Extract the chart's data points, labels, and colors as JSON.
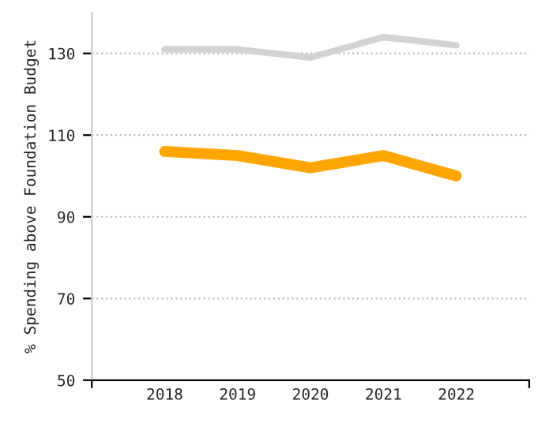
{
  "chart_data": {
    "type": "line",
    "ylabel": "% Spending above Foundation Budget",
    "categories": [
      "2018",
      "2019",
      "2020",
      "2021",
      "2022"
    ],
    "series": [
      {
        "color": "#d3d3d3",
        "values": [
          131,
          131,
          129,
          134,
          132
        ]
      },
      {
        "color": "#ffa500",
        "values": [
          106,
          105,
          102,
          105,
          100
        ]
      }
    ],
    "ylim": [
      50,
      140
    ],
    "yticks": [
      50,
      70,
      90,
      110,
      130
    ],
    "grid": "y",
    "marker": "none",
    "line_style": "solid"
  }
}
